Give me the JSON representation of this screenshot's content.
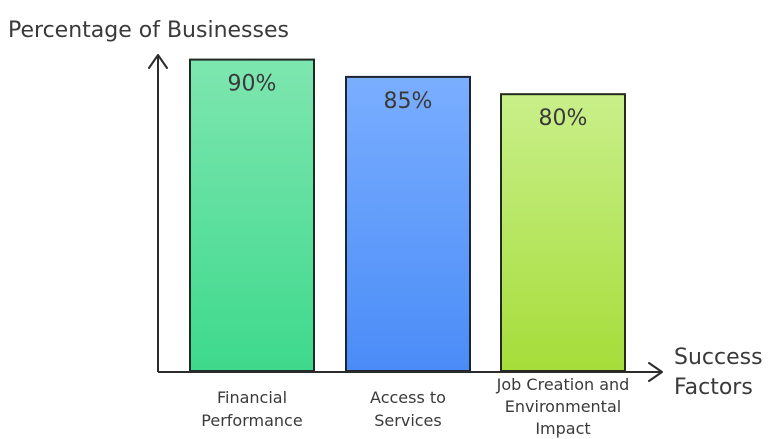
{
  "chart_data": {
    "type": "bar",
    "ylabel": "Percentage of Businesses",
    "xlabel_lines": [
      "Success",
      "Factors"
    ],
    "categories": [
      [
        "Financial",
        "Performance"
      ],
      [
        "Access to",
        "Services"
      ],
      [
        "Job Creation and",
        "Environmental",
        "Impact"
      ]
    ],
    "values": [
      90,
      85,
      80
    ],
    "value_labels": [
      "90%",
      "85%",
      "80%"
    ],
    "ylim": [
      0,
      100
    ],
    "grid": false,
    "colors": [
      {
        "top": "#7ee6b0",
        "bottom": "#3ed98c",
        "stroke": "#1f2a24"
      },
      {
        "top": "#7aaeff",
        "bottom": "#4a8cf7",
        "stroke": "#1f2430"
      },
      {
        "top": "#c9ef8a",
        "bottom": "#a6dd3a",
        "stroke": "#252b1c"
      }
    ]
  }
}
